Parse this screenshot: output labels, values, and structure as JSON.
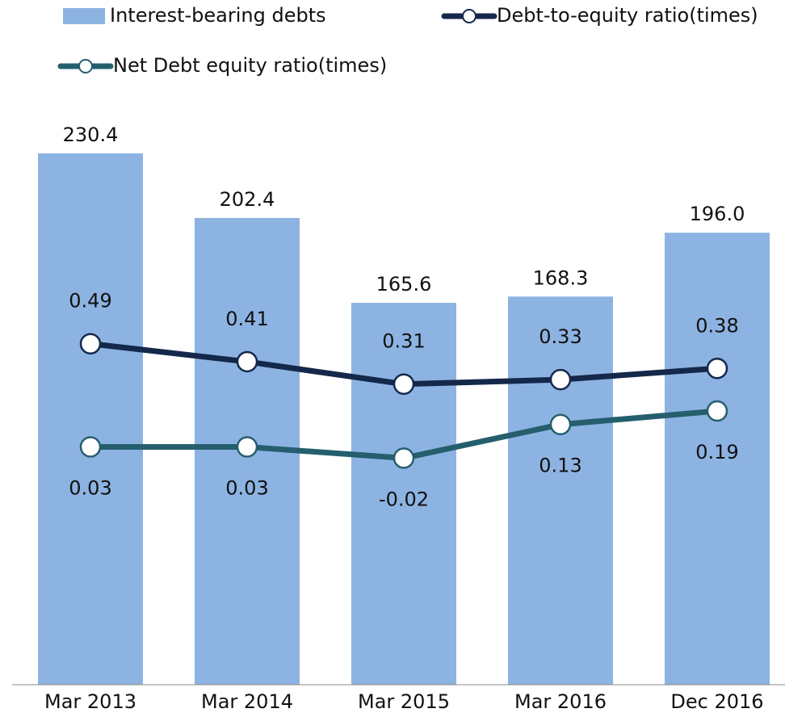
{
  "chart_data": {
    "type": "bar-line",
    "categories": [
      "Mar 2013",
      "Mar 2014",
      "Mar 2015",
      "Mar 2016",
      "Dec 2016"
    ],
    "series": [
      {
        "name": "Interest-bearing debts",
        "type": "bar",
        "color": "#8db3e2",
        "values": [
          230.4,
          202.4,
          165.6,
          168.3,
          196.0
        ],
        "value_labels": [
          "230.4",
          "202.4",
          "165.6",
          "168.3",
          "196.0"
        ]
      },
      {
        "name": "Debt-to-equity ratio(times)",
        "type": "line",
        "axis": "y2",
        "color": "#14284b",
        "values": [
          0.49,
          0.41,
          0.31,
          0.33,
          0.38
        ]
      },
      {
        "name": "Net Debt equity ratio(times)",
        "type": "line",
        "axis": "y2",
        "color": "#255f6e",
        "values": [
          0.03,
          0.03,
          -0.02,
          0.13,
          0.19
        ]
      }
    ],
    "ylim": [
      0,
      250
    ],
    "y2lim": [
      -1.03,
      1.54
    ]
  }
}
